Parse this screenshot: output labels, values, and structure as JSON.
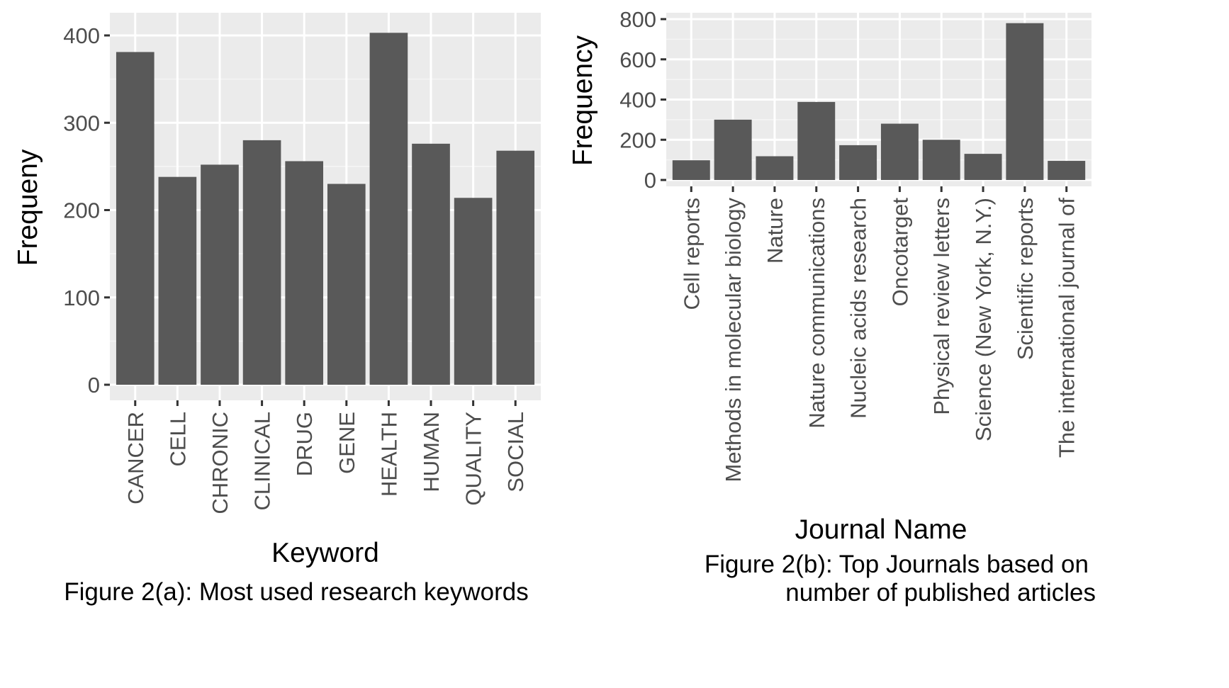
{
  "chart_data": [
    {
      "type": "bar",
      "categories": [
        "CANCER",
        "CELL",
        "CHRONIC",
        "CLINICAL",
        "DRUG",
        "GENE",
        "HEALTH",
        "HUMAN",
        "QUALITY",
        "SOCIAL"
      ],
      "values": [
        381,
        238,
        252,
        280,
        256,
        230,
        403,
        276,
        214,
        268
      ],
      "xlabel": "Keyword",
      "ylabel": "Frequeny",
      "ylim": [
        0,
        420
      ],
      "yticks": [
        0,
        100,
        200,
        300,
        400
      ],
      "caption": "Figure 2(a): Most used research keywords",
      "grid": true
    },
    {
      "type": "bar",
      "categories": [
        "Cell reports",
        "Methods in molecular biology",
        "Nature",
        "Nature communications",
        "Nucleic acids research",
        "Oncotarget",
        "Physical review letters",
        "Science (New York, N.Y.)",
        "Scientific reports",
        "The international journal of"
      ],
      "values": [
        98,
        300,
        118,
        388,
        173,
        280,
        200,
        130,
        780,
        95
      ],
      "xlabel": "Journal Name",
      "ylabel": "Frequency",
      "ylim": [
        0,
        810
      ],
      "yticks": [
        0,
        200,
        400,
        600,
        800
      ],
      "caption_lines": [
        "Figure 2(b): Top Journals based on",
        "number of published articles"
      ],
      "grid": true
    }
  ],
  "colors": {
    "bar": "#595959",
    "panel_bg": "#ebebeb",
    "grid_major": "#ffffff",
    "tick": "#333333"
  }
}
